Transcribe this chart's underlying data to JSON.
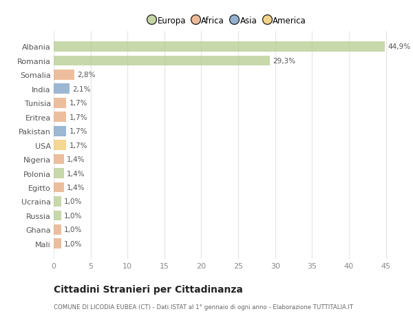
{
  "countries": [
    "Albania",
    "Romania",
    "Somalia",
    "India",
    "Tunisia",
    "Eritrea",
    "Pakistan",
    "USA",
    "Nigeria",
    "Polonia",
    "Egitto",
    "Ucraina",
    "Russia",
    "Ghana",
    "Mali"
  ],
  "values": [
    44.9,
    29.3,
    2.8,
    2.1,
    1.7,
    1.7,
    1.7,
    1.7,
    1.4,
    1.4,
    1.4,
    1.0,
    1.0,
    1.0,
    1.0
  ],
  "labels": [
    "44,9%",
    "29,3%",
    "2,8%",
    "2,1%",
    "1,7%",
    "1,7%",
    "1,7%",
    "1,7%",
    "1,4%",
    "1,4%",
    "1,4%",
    "1,0%",
    "1,0%",
    "1,0%",
    "1,0%"
  ],
  "colors": [
    "#b5cc8e",
    "#b5cc8e",
    "#e8a97e",
    "#7a9fc4",
    "#e8a97e",
    "#e8a97e",
    "#7a9fc4",
    "#f0c96e",
    "#e8a97e",
    "#b5cc8e",
    "#e8a97e",
    "#b5cc8e",
    "#b5cc8e",
    "#e8a97e",
    "#e8a97e"
  ],
  "legend_labels": [
    "Europa",
    "Africa",
    "Asia",
    "America"
  ],
  "legend_colors": [
    "#b5cc8e",
    "#e8a97e",
    "#7a9fc4",
    "#f0c96e"
  ],
  "title": "Cittadini Stranieri per Cittadinanza",
  "subtitle": "COMUNE DI LICODIA EUBEA (CT) - Dati ISTAT al 1° gennaio di ogni anno - Elaborazione TUTTITALIA.IT",
  "xlim": [
    0,
    47
  ],
  "xticks": [
    0,
    5,
    10,
    15,
    20,
    25,
    30,
    35,
    40,
    45
  ],
  "background_color": "#ffffff",
  "grid_color": "#e8e8e8",
  "bar_height": 0.72
}
